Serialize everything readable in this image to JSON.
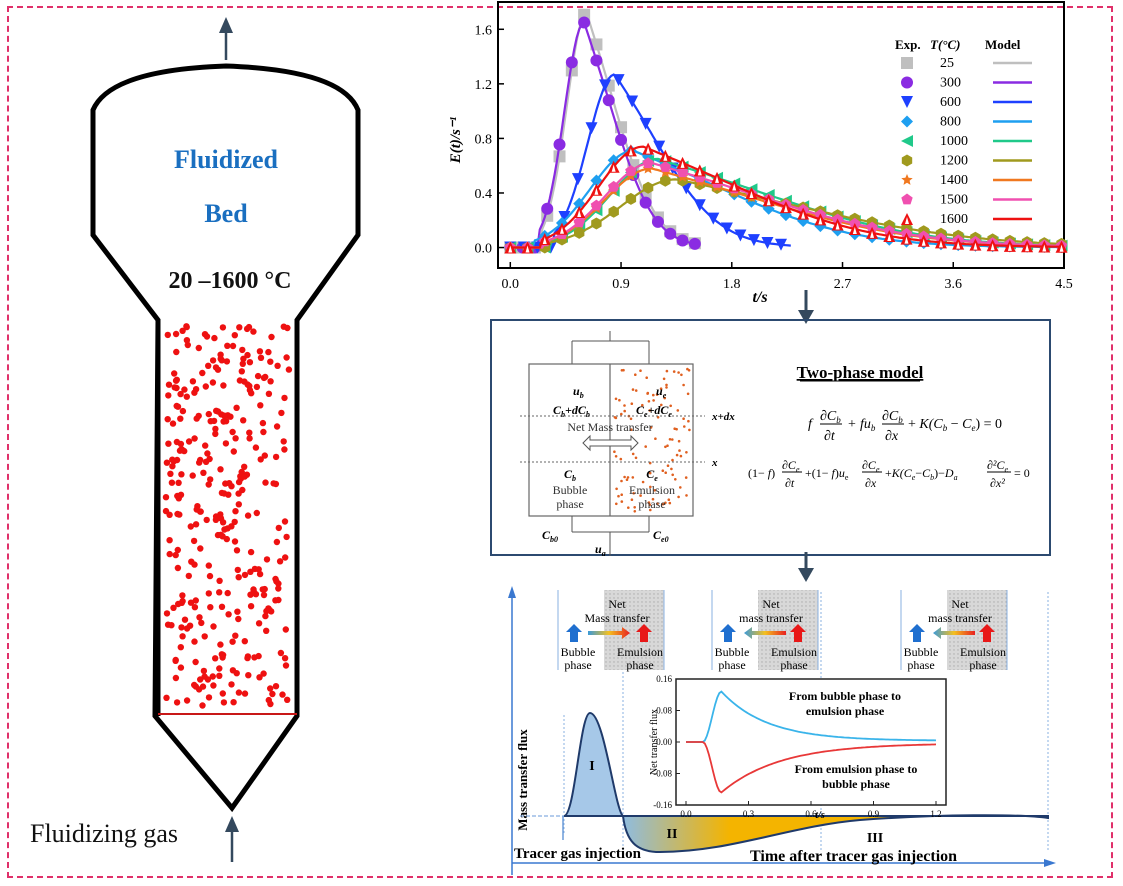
{
  "reactor": {
    "title_line1": "Fluidized",
    "title_line2": "Bed",
    "temperature_range": "20 –1600 °C",
    "inlet_label": "Fluidizing gas",
    "title_color": "#1a6fc0",
    "particle_color": "#ee1111"
  },
  "chart_data": [
    {
      "type": "line",
      "title": "",
      "xlabel": "t/s",
      "ylabel": "E(t)/s⁻¹",
      "xlim": [
        -0.1,
        4.5
      ],
      "ylim": [
        -0.15,
        1.8
      ],
      "xticks": [
        "0.0",
        "0.9",
        "1.8",
        "2.7",
        "3.6",
        "4.5"
      ],
      "yticks": [
        "0.0",
        "0.4",
        "0.8",
        "1.2",
        "1.6"
      ],
      "legend": {
        "placement": "top-right",
        "headers": [
          "Exp.",
          "T(°C)",
          "Model"
        ]
      },
      "series": [
        {
          "name": "25",
          "marker": "square",
          "color": "#bfbfbf",
          "peak_t": 0.62,
          "peak_E": 1.72,
          "width_rise": 0.16,
          "width_fall": 0.3,
          "t_end": 1.55
        },
        {
          "name": "300",
          "marker": "circle",
          "color": "#8a2be2",
          "peak_t": 0.6,
          "peak_E": 1.65,
          "width_rise": 0.16,
          "width_fall": 0.3,
          "t_end": 1.5
        },
        {
          "name": "600",
          "marker": "triangle-down",
          "color": "#1e40ff",
          "peak_t": 0.85,
          "peak_E": 1.27,
          "width_rise": 0.22,
          "width_fall": 0.45,
          "t_end": 2.3
        },
        {
          "name": "800",
          "marker": "diamond",
          "color": "#1e9ff0",
          "peak_t": 1.0,
          "peak_E": 0.71,
          "width_rise": 0.35,
          "width_fall": 0.95,
          "t_end": 4.5
        },
        {
          "name": "1000",
          "marker": "triangle-left",
          "color": "#20c98a",
          "peak_t": 1.2,
          "peak_E": 0.65,
          "width_rise": 0.38,
          "width_fall": 1.15,
          "t_end": 4.5
        },
        {
          "name": "1200",
          "marker": "hexagon",
          "color": "#a09a1e",
          "peak_t": 1.35,
          "peak_E": 0.5,
          "width_rise": 0.45,
          "width_fall": 1.3,
          "t_end": 4.5
        },
        {
          "name": "1400",
          "marker": "star",
          "color": "#f07820",
          "peak_t": 1.15,
          "peak_E": 0.58,
          "width_rise": 0.38,
          "width_fall": 1.15,
          "t_end": 4.5
        },
        {
          "name": "1500",
          "marker": "pentagon",
          "color": "#f050b0",
          "peak_t": 1.15,
          "peak_E": 0.62,
          "width_rise": 0.38,
          "width_fall": 1.15,
          "t_end": 4.5
        },
        {
          "name": "1600",
          "marker": "triangle-up-open",
          "color": "#ee1111",
          "peak_t": 1.08,
          "peak_E": 0.74,
          "width_rise": 0.36,
          "width_fall": 1.0,
          "t_end": 4.5
        }
      ]
    },
    {
      "type": "line",
      "title": "",
      "xlabel": "t/s",
      "ylabel": "Net transfer flux",
      "xlim": [
        0.0,
        1.2
      ],
      "ylim": [
        -0.16,
        0.16
      ],
      "xticks": [
        "0.0",
        "0.3",
        "0.6",
        "0.9",
        "1.2"
      ],
      "yticks": [
        "0.16",
        "0.08",
        "0.00",
        "-0.08",
        "-0.16"
      ],
      "annotations": [
        {
          "text_line1": "From bubble phase to",
          "text_line2": "emulsion phase"
        },
        {
          "text_line1": "From emulsion phase  to",
          "text_line2": "bubble phase"
        }
      ],
      "series": [
        {
          "name": "bubble-to-emulsion",
          "color": "#3ab4ea",
          "onset_t": 0.08,
          "peak_t": 0.17,
          "peak_value": 0.128,
          "decay": 0.22,
          "end_value": 0.003
        },
        {
          "name": "emulsion-to-bubble",
          "color": "#e83838",
          "onset_t": 0.08,
          "peak_t": 0.17,
          "peak_value": -0.128,
          "decay": 0.28,
          "end_value": -0.003
        }
      ]
    }
  ],
  "model_box": {
    "title": "Two-phase model",
    "diagram": {
      "bubble_velocity": "u",
      "bubble_velocity_sub": "b",
      "emulsion_velocity": "u",
      "emulsion_velocity_sub": "e",
      "bubble_top_conc": "C",
      "bubble_top_conc_rest": "b+dC",
      "emulsion_top_conc": "C",
      "net_transfer_label": "Net Mass transfer",
      "x_plus_dx": "x+dx",
      "x_label": "x",
      "bubble_conc": "C",
      "bubble_phase_line1": "Bubble",
      "bubble_phase_line2": "phase",
      "emulsion_conc": "C",
      "emulsion_phase_line1": "Emulsion",
      "emulsion_phase_line2": "phase",
      "bubble_inlet": "C",
      "bubble_inlet_sub": "b0",
      "emulsion_inlet": "C",
      "emulsion_inlet_sub": "e0",
      "gas_velocity": "u",
      "gas_velocity_sub": "g"
    },
    "equation1": "f ∂C_b/∂t + f u_b ∂C_b/∂x + K(C_b − C_e) = 0",
    "equation2": "(1−f) ∂C_e/∂t + (1−f) u_e ∂C_e/∂x + K(C_e − C_b) − D_a ∂²C_e/∂x² = 0"
  },
  "flux_schematic": {
    "y_axis_label": "Mass transfer flux",
    "x_axis_label": "Time after tracer gas injection",
    "injection_label": "Tracer gas injection",
    "regions": [
      "I",
      "II",
      "III"
    ],
    "phase_panels": [
      {
        "title_line1": "Net",
        "title_line2": "Mass transfer",
        "bubble": "Bubble",
        "bubble2": "phase",
        "emulsion": "Emulsion",
        "emulsion2": "phase",
        "direction": "bubble-to-emulsion"
      },
      {
        "title_line1": "Net",
        "title_line2": "mass transfer",
        "bubble": "Bubble",
        "bubble2": "phase",
        "emulsion": "Emulsion",
        "emulsion2": "phase",
        "direction": "emulsion-to-bubble"
      },
      {
        "title_line1": "Net",
        "title_line2": "mass transfer",
        "bubble": "Bubble",
        "bubble2": "phase",
        "emulsion": "Emulsion",
        "emulsion2": "phase",
        "direction": "emulsion-to-bubble"
      }
    ]
  }
}
